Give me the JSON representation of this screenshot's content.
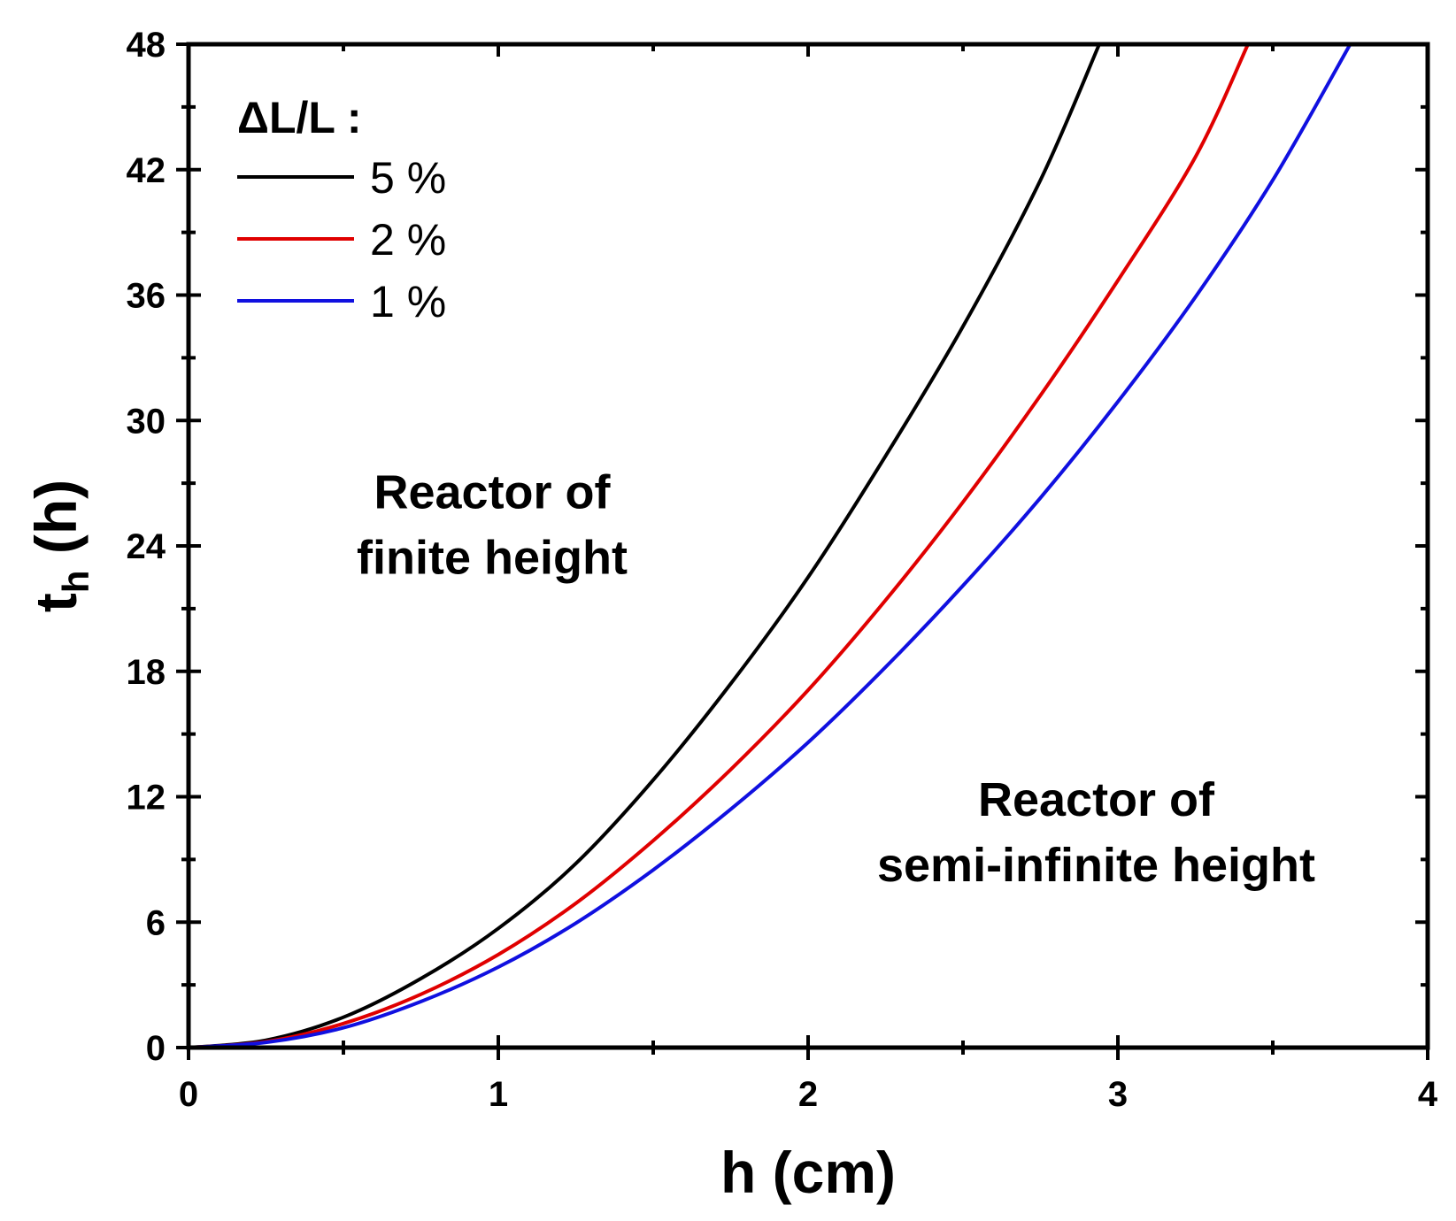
{
  "chart_data": {
    "type": "line",
    "title": "",
    "xlabel": "h (cm)",
    "ylabel_main": "t",
    "ylabel_sub": "h",
    "ylabel_unit": " (h)",
    "xlim": [
      0,
      4
    ],
    "ylim": [
      0,
      48
    ],
    "x_ticks": [
      0,
      1,
      2,
      3,
      4
    ],
    "x_tick_labels": [
      "0",
      "1",
      "2",
      "3",
      "4"
    ],
    "y_ticks": [
      0,
      6,
      12,
      18,
      24,
      30,
      36,
      42,
      48
    ],
    "y_tick_labels": [
      "0",
      "6",
      "12",
      "18",
      "24",
      "30",
      "36",
      "42",
      "48"
    ],
    "grid": false,
    "legend": {
      "title": "ΔL/L :",
      "position": "top-left"
    },
    "series": [
      {
        "name": "5 %",
        "color": "#000000",
        "points": [
          [
            0,
            0
          ],
          [
            0.25,
            0.35
          ],
          [
            0.5,
            1.45
          ],
          [
            0.75,
            3.3
          ],
          [
            1,
            5.7
          ],
          [
            1.25,
            8.8
          ],
          [
            1.5,
            12.8
          ],
          [
            1.75,
            17.4
          ],
          [
            2,
            22.5
          ],
          [
            2.25,
            28.3
          ],
          [
            2.5,
            34.5
          ],
          [
            2.75,
            41.5
          ],
          [
            2.94,
            48
          ]
        ]
      },
      {
        "name": "2 %",
        "color": "#e00000",
        "points": [
          [
            0,
            0
          ],
          [
            0.25,
            0.28
          ],
          [
            0.5,
            1.15
          ],
          [
            0.75,
            2.55
          ],
          [
            1,
            4.45
          ],
          [
            1.25,
            6.9
          ],
          [
            1.5,
            9.9
          ],
          [
            1.75,
            13.3
          ],
          [
            2,
            17.1
          ],
          [
            2.25,
            21.4
          ],
          [
            2.5,
            26.1
          ],
          [
            2.75,
            31.2
          ],
          [
            3,
            36.7
          ],
          [
            3.25,
            42.6
          ],
          [
            3.42,
            48
          ]
        ]
      },
      {
        "name": "1 %",
        "color": "#1010e0",
        "points": [
          [
            0,
            0
          ],
          [
            0.25,
            0.25
          ],
          [
            0.5,
            0.95
          ],
          [
            0.75,
            2.2
          ],
          [
            1,
            3.85
          ],
          [
            1.25,
            5.95
          ],
          [
            1.5,
            8.5
          ],
          [
            1.75,
            11.4
          ],
          [
            2,
            14.6
          ],
          [
            2.25,
            18.2
          ],
          [
            2.5,
            22.1
          ],
          [
            2.75,
            26.3
          ],
          [
            3,
            30.9
          ],
          [
            3.25,
            35.9
          ],
          [
            3.5,
            41.5
          ],
          [
            3.75,
            48
          ]
        ]
      }
    ],
    "annotations": [
      {
        "lines": [
          "Reactor of",
          "finite height"
        ],
        "x": 0.98,
        "y": 25.8
      },
      {
        "lines": [
          "Reactor of",
          "semi-infinite height"
        ],
        "x": 2.93,
        "y": 11.1
      }
    ]
  }
}
